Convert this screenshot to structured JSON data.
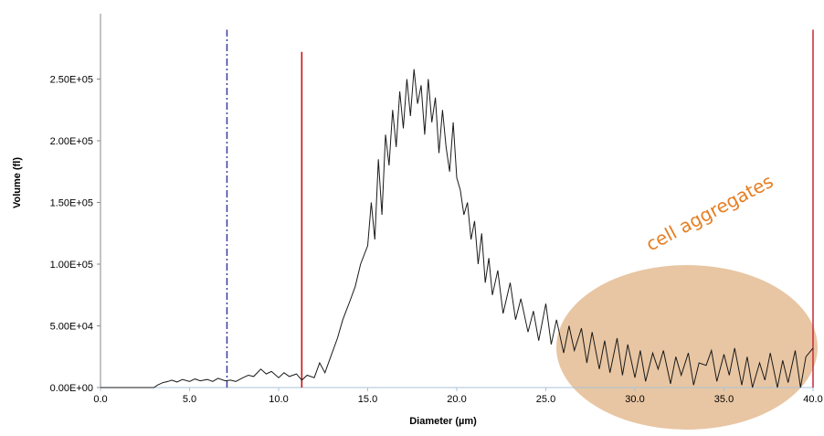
{
  "chart_data": {
    "type": "line",
    "xlabel": "Diameter (µm)",
    "ylabel": "Volume (fl)",
    "xlim": [
      0,
      40
    ],
    "ylim": [
      0,
      280000
    ],
    "x_ticks": [
      "0.0",
      "5.0",
      "10.0",
      "15.0",
      "20.0",
      "25.0",
      "30.0",
      "35.0",
      "40.0"
    ],
    "y_ticks": [
      "0.00E+00",
      "5.00E+04",
      "1.00E+05",
      "1.50E+05",
      "2.00E+05",
      "2.50E+05"
    ],
    "grid": false,
    "legend": "none",
    "series": [
      {
        "color": "#1a1a1a",
        "x": [
          0,
          3.0,
          3.2,
          3.5,
          3.8,
          4.0,
          4.3,
          4.6,
          5.0,
          5.3,
          5.6,
          6.0,
          6.3,
          6.6,
          7.0,
          7.3,
          7.6,
          8.0,
          8.3,
          8.6,
          9.0,
          9.3,
          9.6,
          10.0,
          10.3,
          10.6,
          11.0,
          11.3,
          11.6,
          12.0,
          12.3,
          12.6,
          13.0,
          13.3,
          13.6,
          14.0,
          14.3,
          14.6,
          15.0,
          15.2,
          15.4,
          15.6,
          15.8,
          16.0,
          16.2,
          16.4,
          16.6,
          16.8,
          17.0,
          17.2,
          17.4,
          17.6,
          17.8,
          18.0,
          18.2,
          18.4,
          18.6,
          18.8,
          19.0,
          19.2,
          19.4,
          19.6,
          19.8,
          20.0,
          20.2,
          20.4,
          20.6,
          20.8,
          21.0,
          21.2,
          21.4,
          21.6,
          21.8,
          22.0,
          22.3,
          22.6,
          23.0,
          23.3,
          23.6,
          24.0,
          24.3,
          24.6,
          25.0,
          25.3,
          25.6,
          26.0,
          26.3,
          26.6,
          27.0,
          27.3,
          27.6,
          28.0,
          28.3,
          28.6,
          29.0,
          29.3,
          29.6,
          30.0,
          30.3,
          30.6,
          31.0,
          31.3,
          31.6,
          32.0,
          32.3,
          32.6,
          33.0,
          33.3,
          33.6,
          34.0,
          34.3,
          34.6,
          35.0,
          35.3,
          35.6,
          36.0,
          36.3,
          36.6,
          37.0,
          37.3,
          37.6,
          38.0,
          38.3,
          38.6,
          39.0,
          39.3,
          39.6,
          40.0
        ],
        "y": [
          0,
          0,
          2000,
          4000,
          5000,
          6000,
          4500,
          6500,
          5000,
          7000,
          5500,
          6500,
          5000,
          7500,
          5500,
          6000,
          5000,
          8000,
          10000,
          9000,
          15000,
          11000,
          13000,
          8000,
          12000,
          9000,
          11000,
          6000,
          10000,
          8000,
          20000,
          12000,
          28000,
          40000,
          55000,
          70000,
          82000,
          100000,
          115000,
          150000,
          120000,
          185000,
          140000,
          205000,
          180000,
          225000,
          195000,
          240000,
          210000,
          250000,
          220000,
          258000,
          230000,
          245000,
          205000,
          250000,
          215000,
          235000,
          190000,
          225000,
          195000,
          175000,
          215000,
          170000,
          160000,
          140000,
          150000,
          120000,
          135000,
          100000,
          125000,
          85000,
          105000,
          75000,
          95000,
          60000,
          85000,
          55000,
          72000,
          45000,
          62000,
          38000,
          68000,
          35000,
          55000,
          28000,
          50000,
          30000,
          48000,
          20000,
          45000,
          15000,
          38000,
          12000,
          40000,
          10000,
          35000,
          8000,
          30000,
          5000,
          28000,
          15000,
          30000,
          3000,
          25000,
          10000,
          28000,
          2000,
          20000,
          18000,
          30000,
          5000,
          27000,
          10000,
          32000,
          2000,
          25000,
          0,
          20000,
          6000,
          28000,
          0,
          22000,
          4000,
          30000,
          0,
          25000,
          32000
        ]
      }
    ],
    "vertical_lines": [
      {
        "x": 7.1,
        "color": "#3b3ba0",
        "style": "dashdot",
        "y_top": 290000
      },
      {
        "x": 11.3,
        "color": "#cc1111",
        "style": "solid",
        "y_top": 272000
      },
      {
        "x": 40.0,
        "color": "#cc3344",
        "style": "solid",
        "y_top": 290000
      }
    ],
    "annotation": {
      "text": "cell aggregates",
      "color": "#e67e22",
      "highlight_color": "#d9a066"
    }
  }
}
